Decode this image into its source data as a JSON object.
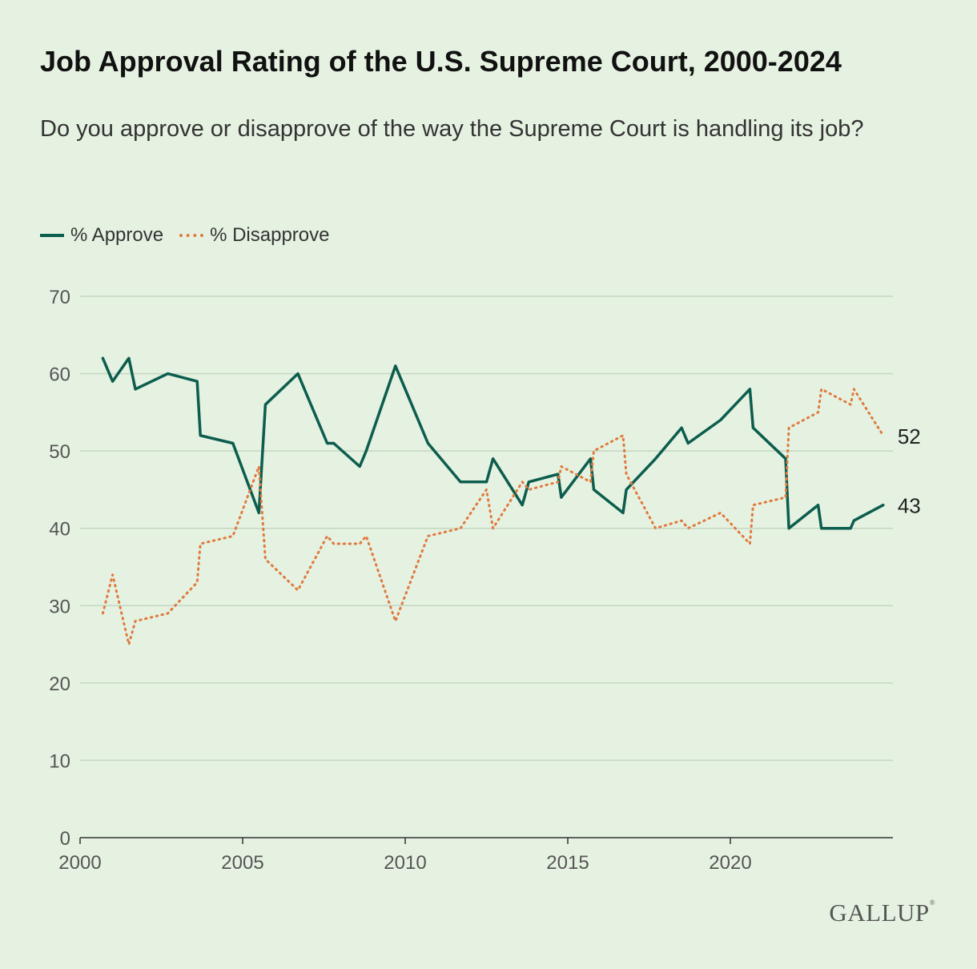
{
  "chart_data": {
    "type": "line",
    "title": "Job Approval Rating of the U.S. Supreme Court, 2000-2024",
    "subtitle": "Do you approve or disapprove of the way the Supreme Court is handling its job?",
    "xlabel": "",
    "ylabel": "",
    "xlim": [
      2000,
      2025
    ],
    "ylim": [
      0,
      70
    ],
    "x_ticks": [
      "2000",
      "2005",
      "2010",
      "2015",
      "2020"
    ],
    "y_ticks": [
      "0",
      "10",
      "20",
      "30",
      "40",
      "50",
      "60",
      "70"
    ],
    "grid": true,
    "legend_position": "top-left",
    "series": [
      {
        "name": "% Approve",
        "color": "#0c5d4e",
        "style": "solid",
        "end_label": "43",
        "points": [
          [
            2000.7,
            62
          ],
          [
            2001.0,
            59
          ],
          [
            2001.5,
            62
          ],
          [
            2001.7,
            58
          ],
          [
            2002.7,
            60
          ],
          [
            2003.6,
            59
          ],
          [
            2003.7,
            52
          ],
          [
            2004.7,
            51
          ],
          [
            2005.5,
            42
          ],
          [
            2005.7,
            56
          ],
          [
            2006.7,
            60
          ],
          [
            2007.6,
            51
          ],
          [
            2007.8,
            51
          ],
          [
            2008.6,
            48
          ],
          [
            2008.8,
            50
          ],
          [
            2009.7,
            61
          ],
          [
            2010.7,
            51
          ],
          [
            2011.7,
            46
          ],
          [
            2012.5,
            46
          ],
          [
            2012.7,
            49
          ],
          [
            2013.6,
            43
          ],
          [
            2013.8,
            46
          ],
          [
            2014.7,
            47
          ],
          [
            2014.8,
            44
          ],
          [
            2015.7,
            49
          ],
          [
            2015.8,
            45
          ],
          [
            2016.7,
            42
          ],
          [
            2016.8,
            45
          ],
          [
            2017.7,
            49
          ],
          [
            2018.5,
            53
          ],
          [
            2018.7,
            51
          ],
          [
            2019.7,
            54
          ],
          [
            2020.6,
            58
          ],
          [
            2020.7,
            53
          ],
          [
            2021.7,
            49
          ],
          [
            2021.8,
            40
          ],
          [
            2022.7,
            43
          ],
          [
            2022.8,
            40
          ],
          [
            2023.7,
            40
          ],
          [
            2023.8,
            41
          ],
          [
            2024.7,
            43
          ]
        ]
      },
      {
        "name": "% Disapprove",
        "color": "#e07a3e",
        "style": "dotted",
        "end_label": "52",
        "points": [
          [
            2000.7,
            29
          ],
          [
            2001.0,
            34
          ],
          [
            2001.5,
            25
          ],
          [
            2001.7,
            28
          ],
          [
            2002.7,
            29
          ],
          [
            2003.6,
            33
          ],
          [
            2003.7,
            38
          ],
          [
            2004.7,
            39
          ],
          [
            2005.5,
            48
          ],
          [
            2005.7,
            36
          ],
          [
            2006.7,
            32
          ],
          [
            2007.6,
            39
          ],
          [
            2007.8,
            38
          ],
          [
            2008.6,
            38
          ],
          [
            2008.8,
            39
          ],
          [
            2009.7,
            28
          ],
          [
            2010.7,
            39
          ],
          [
            2011.7,
            40
          ],
          [
            2012.5,
            45
          ],
          [
            2012.7,
            40
          ],
          [
            2013.6,
            46
          ],
          [
            2013.8,
            45
          ],
          [
            2014.7,
            46
          ],
          [
            2014.8,
            48
          ],
          [
            2015.7,
            46
          ],
          [
            2015.8,
            50
          ],
          [
            2016.7,
            52
          ],
          [
            2016.8,
            47
          ],
          [
            2017.7,
            40
          ],
          [
            2018.5,
            41
          ],
          [
            2018.7,
            40
          ],
          [
            2019.7,
            42
          ],
          [
            2020.6,
            38
          ],
          [
            2020.7,
            43
          ],
          [
            2021.7,
            44
          ],
          [
            2021.8,
            53
          ],
          [
            2022.7,
            55
          ],
          [
            2022.8,
            58
          ],
          [
            2023.7,
            56
          ],
          [
            2023.8,
            58
          ],
          [
            2024.7,
            52
          ]
        ]
      }
    ]
  },
  "brand": {
    "name": "GALLUP",
    "mark": "®"
  }
}
